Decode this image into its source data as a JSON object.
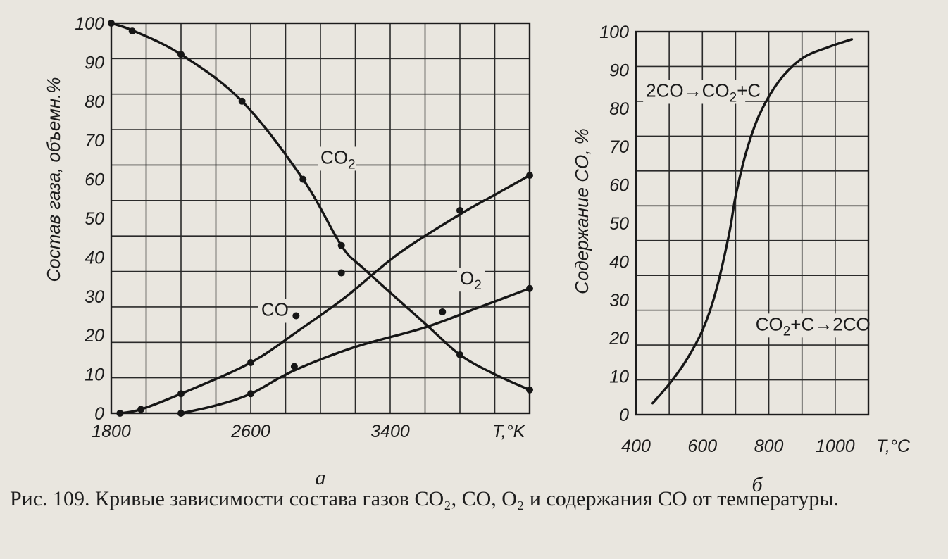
{
  "chart_data": [
    {
      "type": "line",
      "panel_label": "a",
      "ylabel": "Состав газа, объемн.%",
      "x_unit_label": "T,°K",
      "x_ticks": [
        1800,
        2600,
        3400
      ],
      "y_ticks": [
        0,
        10,
        20,
        30,
        40,
        50,
        60,
        70,
        80,
        90,
        100
      ],
      "xlim": [
        1800,
        4200
      ],
      "ylim": [
        0,
        100
      ],
      "grid": true,
      "series": [
        {
          "name": "CO₂",
          "points": [
            [
              1800,
              100
            ],
            [
              1930,
              98
            ],
            [
              2200,
              92
            ],
            [
              2550,
              80
            ],
            [
              2900,
              60
            ],
            [
              3120,
              43
            ],
            [
              3250,
              37
            ],
            [
              3600,
              23
            ],
            [
              3800,
              15
            ],
            [
              4000,
              10
            ],
            [
              4200,
              6
            ]
          ],
          "markers": [
            [
              1800,
              100
            ],
            [
              1920,
              98
            ],
            [
              2200,
              92
            ],
            [
              2550,
              80
            ],
            [
              2900,
              60
            ],
            [
              3120,
              43
            ],
            [
              3800,
              15
            ],
            [
              4200,
              6
            ]
          ]
        },
        {
          "name": "CO",
          "points": [
            [
              1850,
              0
            ],
            [
              1970,
              1
            ],
            [
              2200,
              5
            ],
            [
              2600,
              13
            ],
            [
              2900,
              22
            ],
            [
              3150,
              30
            ],
            [
              3450,
              41
            ],
            [
              3800,
              51
            ],
            [
              4000,
              56
            ],
            [
              4200,
              61
            ]
          ],
          "markers": [
            [
              1850,
              0
            ],
            [
              1970,
              1
            ],
            [
              2200,
              5
            ],
            [
              2600,
              13
            ],
            [
              2860,
              25
            ],
            [
              3120,
              36
            ],
            [
              3800,
              52
            ],
            [
              4200,
              61
            ]
          ]
        },
        {
          "name": "O₂",
          "points": [
            [
              2200,
              0
            ],
            [
              2400,
              2
            ],
            [
              2600,
              5
            ],
            [
              2850,
              11
            ],
            [
              3200,
              17
            ],
            [
              3600,
              22
            ],
            [
              3900,
              27
            ],
            [
              4200,
              32
            ]
          ],
          "markers": [
            [
              2200,
              0
            ],
            [
              2600,
              5
            ],
            [
              2850,
              12
            ],
            [
              3700,
              26
            ],
            [
              4200,
              32
            ]
          ]
        }
      ],
      "annotations": [
        {
          "text": "CO₂",
          "x": 3000,
          "y": 64
        },
        {
          "text": "CO",
          "x": 2660,
          "y": 25
        },
        {
          "text": "O₂",
          "x": 3800,
          "y": 33
        }
      ]
    },
    {
      "type": "line",
      "panel_label": "б",
      "ylabel": "Содержание CO, %",
      "x_unit_label": "T,°C",
      "x_ticks": [
        400,
        600,
        800,
        1000
      ],
      "y_ticks": [
        0,
        10,
        20,
        30,
        40,
        50,
        60,
        70,
        80,
        90,
        100
      ],
      "xlim": [
        400,
        1100
      ],
      "ylim": [
        0,
        100
      ],
      "grid": true,
      "series": [
        {
          "name": "CO",
          "points": [
            [
              450,
              3
            ],
            [
              500,
              8
            ],
            [
              550,
              14
            ],
            [
              600,
              22
            ],
            [
              640,
              32
            ],
            [
              680,
              47
            ],
            [
              700,
              57
            ],
            [
              730,
              68
            ],
            [
              770,
              78
            ],
            [
              830,
              87
            ],
            [
              900,
              93
            ],
            [
              980,
              96
            ],
            [
              1050,
              98
            ]
          ]
        }
      ],
      "annotations": [
        {
          "text": "2CO→CO₂+C",
          "x": 430,
          "y": 83
        },
        {
          "text": "CO₂+C→2CO",
          "x": 760,
          "y": 22
        }
      ]
    }
  ],
  "caption": "Рис. 109. Кривые зависимости состава газов CO₂, CO, O₂ и содержания CO от температуры."
}
